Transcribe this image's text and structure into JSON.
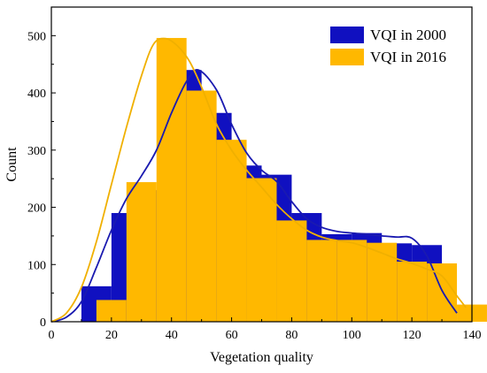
{
  "colors": {
    "vqi_2000": "#1010C0",
    "vqi_2016": "#FFB800",
    "vqi_2000_curve": "#1A1AB0",
    "vqi_2016_curve": "#F0B000"
  },
  "chart_data": {
    "type": "bar",
    "title": "",
    "xlabel": "Vegetation quality",
    "ylabel": "Count",
    "xlim": [
      0,
      140
    ],
    "ylim": [
      0,
      550
    ],
    "x_ticks": [
      "0",
      "20",
      "40",
      "60",
      "80",
      "100",
      "120",
      "140"
    ],
    "y_ticks": [
      "0",
      "100",
      "200",
      "300",
      "400",
      "500"
    ],
    "bin_width": 10,
    "grid": false,
    "legend_position": "top-right",
    "series": [
      {
        "name": "VQI in 2000",
        "bin_starts": [
          10,
          20,
          30,
          40,
          50,
          60,
          70,
          80,
          90,
          100,
          110,
          120
        ],
        "values": [
          62,
          190,
          230,
          440,
          365,
          273,
          257,
          190,
          153,
          155,
          137,
          134
        ],
        "curve": {
          "x": [
            0,
            5,
            10,
            15,
            20,
            25,
            30,
            35,
            40,
            45,
            49,
            55,
            60,
            65,
            70,
            75,
            80,
            85,
            90,
            95,
            100,
            105,
            110,
            115,
            120,
            125,
            130,
            135
          ],
          "y": [
            0,
            8,
            35,
            95,
            160,
            215,
            255,
            300,
            365,
            420,
            440,
            405,
            345,
            295,
            265,
            245,
            210,
            180,
            165,
            158,
            155,
            153,
            150,
            148,
            146,
            115,
            55,
            15
          ]
        }
      },
      {
        "name": "VQI in 2016",
        "bin_starts": [
          15,
          25,
          35,
          45,
          55,
          65,
          75,
          85,
          95,
          105,
          115,
          125,
          135
        ],
        "values": [
          38,
          244,
          496,
          404,
          318,
          251,
          177,
          143,
          143,
          138,
          105,
          102,
          30
        ],
        "curve": {
          "x": [
            0,
            5,
            10,
            15,
            20,
            25,
            30,
            34,
            38,
            42,
            46,
            50,
            55,
            60,
            65,
            70,
            75,
            80,
            85,
            90,
            95,
            100,
            105,
            110,
            115,
            120,
            125,
            130,
            135,
            138
          ],
          "y": [
            0,
            15,
            60,
            140,
            240,
            340,
            430,
            485,
            495,
            482,
            455,
            410,
            345,
            300,
            265,
            235,
            205,
            180,
            160,
            148,
            142,
            138,
            130,
            120,
            110,
            102,
            92,
            80,
            45,
            25
          ]
        }
      }
    ]
  }
}
